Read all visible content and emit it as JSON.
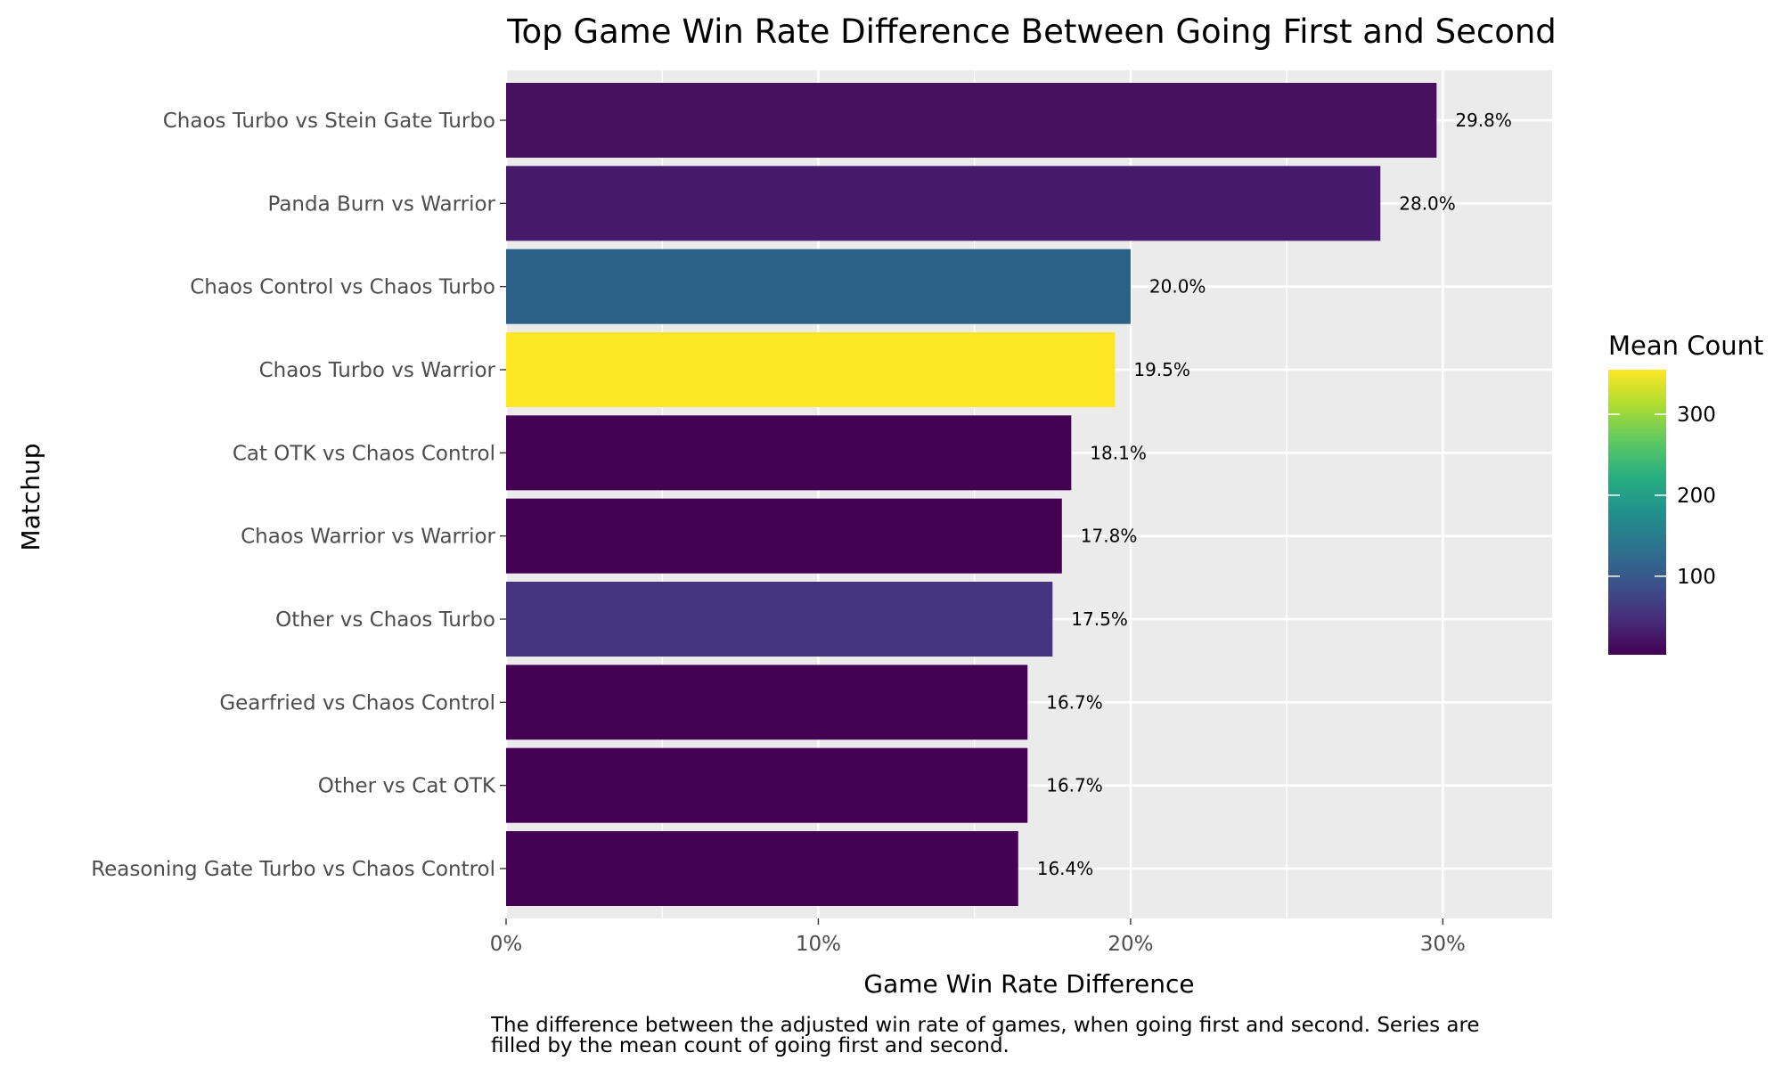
{
  "chart_data": {
    "type": "bar",
    "orientation": "horizontal",
    "title": "Top Game Win Rate Difference Between Going First and Second",
    "xlabel": "Game Win Rate Difference",
    "ylabel": "Matchup",
    "caption_lines": [
      "The difference between the adjusted win rate of games, when going first and second. Series are",
      "filled by the mean count of going first and second."
    ],
    "xlim": [
      0,
      0.335
    ],
    "xticks": [
      0,
      0.1,
      0.2,
      0.3
    ],
    "xtick_labels": [
      "0%",
      "10%",
      "20%",
      "30%"
    ],
    "grid": true,
    "categories": [
      "Chaos Turbo vs Stein Gate Turbo",
      "Panda Burn vs Warrior",
      "Chaos Control vs Chaos Turbo",
      "Chaos Turbo vs Warrior",
      "Cat OTK vs Chaos Control",
      "Chaos Warrior vs Warrior",
      "Other vs Chaos Turbo",
      "Gearfried vs Chaos Control",
      "Other vs Cat OTK",
      "Reasoning Gate Turbo vs Chaos Control"
    ],
    "values": [
      0.298,
      0.28,
      0.2,
      0.195,
      0.181,
      0.178,
      0.175,
      0.167,
      0.167,
      0.164
    ],
    "value_labels": [
      "29.8%",
      "28.0%",
      "20.0%",
      "19.5%",
      "18.1%",
      "17.8%",
      "17.5%",
      "16.7%",
      "16.7%",
      "16.4%"
    ],
    "mean_count": [
      20,
      30,
      105,
      355,
      3,
      5,
      60,
      3,
      3,
      3
    ],
    "fill_colors": [
      "#481160",
      "#481a6c",
      "#2d6086",
      "#fde725",
      "#440154",
      "#440154",
      "#453581",
      "#440154",
      "#440154",
      "#440154"
    ],
    "legend": {
      "title": "Mean Count",
      "placement": "right",
      "range": [
        3,
        355
      ],
      "ticks": [
        100,
        200,
        300
      ],
      "tick_labels": [
        "100",
        "200",
        "300"
      ],
      "colormap": "viridis"
    }
  }
}
